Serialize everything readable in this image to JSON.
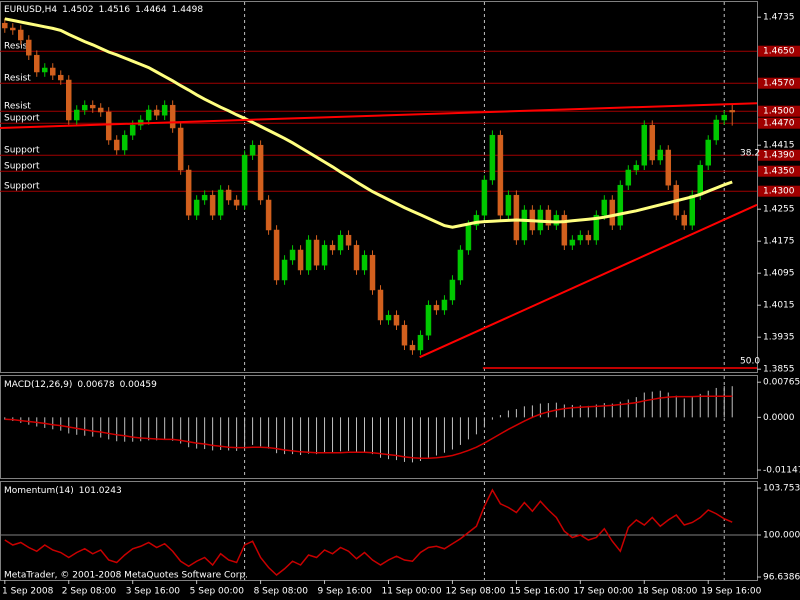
{
  "chart_data": [
    {
      "type": "candlestick",
      "title": "EURUSD,H4",
      "xlim": [
        -0.6,
        94.1
      ],
      "xticks": [
        {
          "value": 0,
          "label": "1 Sep 2008"
        },
        {
          "value": 8,
          "label": "2 Sep 08:00"
        },
        {
          "value": 16,
          "label": "3 Sep 16:00"
        },
        {
          "value": 24,
          "label": "5 Sep 00:00"
        },
        {
          "value": 32,
          "label": "8 Sep 08:00"
        },
        {
          "value": 40,
          "label": "9 Sep 16:00"
        },
        {
          "value": 48,
          "label": "11 Sep 00:00"
        },
        {
          "value": 56,
          "label": "12 Sep 08:00"
        },
        {
          "value": 64,
          "label": "15 Sep 16:00"
        },
        {
          "value": 72,
          "label": "17 Sep 00:00"
        },
        {
          "value": 80,
          "label": "18 Sep 08:00"
        },
        {
          "value": 88,
          "label": "19 Sep 16:00"
        }
      ],
      "ylim": [
        1.3848,
        1.4773
      ],
      "yticks": [
        1.4735,
        1.4415,
        1.4255,
        1.4175,
        1.4095,
        1.4015,
        1.3935,
        1.3855
      ],
      "up_color": "#00c800",
      "down_color": "#d2601e",
      "open": [
        1.472,
        1.4708,
        1.4703,
        1.4678,
        1.464,
        1.4598,
        1.4608,
        1.459,
        1.4578,
        1.4478,
        1.4503,
        1.4515,
        1.4508,
        1.4498,
        1.4428,
        1.4403,
        1.444,
        1.4465,
        1.4478,
        1.4503,
        1.449,
        1.4515,
        1.4458,
        1.4353,
        1.424,
        1.4278,
        1.429,
        1.424,
        1.4303,
        1.4278,
        1.4265,
        1.439,
        1.4415,
        1.4278,
        1.4203,
        1.4078,
        1.4128,
        1.4153,
        1.4103,
        1.4178,
        1.4115,
        1.4165,
        1.4153,
        1.419,
        1.4165,
        1.4103,
        1.414,
        1.4053,
        1.3978,
        1.399,
        1.3965,
        1.3915,
        1.3903,
        1.394,
        1.4015,
        1.4003,
        1.4028,
        1.4078,
        1.4153,
        1.4215,
        1.424,
        1.4328,
        1.444,
        1.424,
        1.429,
        1.4178,
        1.4253,
        1.4203,
        1.4253,
        1.4215,
        1.424,
        1.4165,
        1.4178,
        1.419,
        1.4178,
        1.424,
        1.4278,
        1.4215,
        1.4315,
        1.4353,
        1.4365,
        1.4465,
        1.4378,
        1.4403,
        1.4315,
        1.424,
        1.4215,
        1.429,
        1.4365,
        1.4428,
        1.4478,
        1.4502
      ],
      "high": [
        1.4732,
        1.472,
        1.4715,
        1.469,
        1.4652,
        1.462,
        1.462,
        1.4602,
        1.459,
        1.4515,
        1.4527,
        1.4527,
        1.452,
        1.451,
        1.444,
        1.4452,
        1.4477,
        1.449,
        1.4515,
        1.4515,
        1.4527,
        1.4527,
        1.447,
        1.4365,
        1.429,
        1.4302,
        1.4302,
        1.4315,
        1.4315,
        1.429,
        1.4402,
        1.4427,
        1.4427,
        1.429,
        1.4215,
        1.414,
        1.4165,
        1.4165,
        1.419,
        1.419,
        1.4177,
        1.4177,
        1.4202,
        1.4202,
        1.4177,
        1.4152,
        1.4152,
        1.4065,
        1.4002,
        1.4002,
        1.3977,
        1.3927,
        1.3952,
        1.4027,
        1.4027,
        1.404,
        1.409,
        1.4165,
        1.4227,
        1.4252,
        1.434,
        1.4452,
        1.4452,
        1.4302,
        1.4302,
        1.4265,
        1.4265,
        1.4265,
        1.4265,
        1.4252,
        1.4252,
        1.419,
        1.4202,
        1.4202,
        1.4252,
        1.429,
        1.429,
        1.4327,
        1.4365,
        1.4377,
        1.4477,
        1.4477,
        1.4415,
        1.4415,
        1.4327,
        1.4252,
        1.4302,
        1.4377,
        1.444,
        1.449,
        1.4502,
        1.4516
      ],
      "low": [
        1.4696,
        1.4691,
        1.4666,
        1.4628,
        1.4586,
        1.4586,
        1.4578,
        1.4566,
        1.4466,
        1.4466,
        1.4491,
        1.4496,
        1.4486,
        1.4416,
        1.4391,
        1.4391,
        1.4428,
        1.4453,
        1.4466,
        1.4478,
        1.4478,
        1.4446,
        1.4341,
        1.4228,
        1.4228,
        1.4266,
        1.4228,
        1.4228,
        1.4266,
        1.4253,
        1.4253,
        1.4378,
        1.4266,
        1.4191,
        1.4066,
        1.4066,
        1.4116,
        1.4091,
        1.4091,
        1.4103,
        1.4103,
        1.4141,
        1.4141,
        1.4153,
        1.4091,
        1.4091,
        1.4041,
        1.3966,
        1.3966,
        1.3953,
        1.3903,
        1.3891,
        1.3891,
        1.3928,
        1.3991,
        1.3991,
        1.4016,
        1.4066,
        1.4141,
        1.4203,
        1.4228,
        1.4316,
        1.4228,
        1.4228,
        1.4166,
        1.4166,
        1.4191,
        1.4191,
        1.4203,
        1.4203,
        1.4153,
        1.4153,
        1.4166,
        1.4166,
        1.4166,
        1.4228,
        1.4203,
        1.4203,
        1.4303,
        1.4341,
        1.4353,
        1.4366,
        1.4366,
        1.4303,
        1.4228,
        1.4203,
        1.4203,
        1.4278,
        1.4353,
        1.4416,
        1.4466,
        1.4464
      ],
      "close": [
        1.4708,
        1.4703,
        1.4678,
        1.464,
        1.4598,
        1.4608,
        1.459,
        1.4578,
        1.4478,
        1.4503,
        1.4515,
        1.4508,
        1.4498,
        1.4428,
        1.4403,
        1.444,
        1.4465,
        1.4478,
        1.4503,
        1.449,
        1.4515,
        1.4458,
        1.4353,
        1.424,
        1.4278,
        1.429,
        1.424,
        1.4303,
        1.4278,
        1.4265,
        1.439,
        1.4415,
        1.4278,
        1.4203,
        1.4078,
        1.4128,
        1.4153,
        1.4103,
        1.4178,
        1.4115,
        1.4165,
        1.4153,
        1.419,
        1.4165,
        1.4103,
        1.414,
        1.4053,
        1.3978,
        1.399,
        1.3965,
        1.3915,
        1.3903,
        1.394,
        1.4015,
        1.4003,
        1.4028,
        1.4078,
        1.4153,
        1.4215,
        1.424,
        1.4328,
        1.444,
        1.424,
        1.429,
        1.4178,
        1.4253,
        1.4203,
        1.4253,
        1.4215,
        1.424,
        1.4165,
        1.4178,
        1.419,
        1.4178,
        1.424,
        1.4278,
        1.4215,
        1.4315,
        1.4353,
        1.4365,
        1.4465,
        1.4378,
        1.4403,
        1.4315,
        1.424,
        1.4215,
        1.429,
        1.4365,
        1.4428,
        1.4478,
        1.449,
        1.4498
      ],
      "ma": {
        "color": "#ffff80",
        "values": [
          1.4731,
          1.4727,
          1.4723,
          1.4719,
          1.4715,
          1.4711,
          1.4707,
          1.4702,
          1.4692,
          1.4683,
          1.4674,
          1.4666,
          1.4657,
          1.4648,
          1.4641,
          1.4633,
          1.4625,
          1.4617,
          1.4609,
          1.4598,
          1.4587,
          1.4576,
          1.4564,
          1.4553,
          1.4541,
          1.453,
          1.452,
          1.451,
          1.4501,
          1.4491,
          1.4482,
          1.4472,
          1.4462,
          1.4452,
          1.4442,
          1.4432,
          1.4421,
          1.4409,
          1.4397,
          1.4385,
          1.4373,
          1.4361,
          1.4348,
          1.4336,
          1.4323,
          1.4311,
          1.4299,
          1.4289,
          1.4279,
          1.4269,
          1.4259,
          1.425,
          1.4241,
          1.4232,
          1.4223,
          1.4214,
          1.421,
          1.4214,
          1.4218,
          1.4222,
          1.4224,
          1.4225,
          1.4226,
          1.4227,
          1.4228,
          1.4227,
          1.4226,
          1.4225,
          1.4224,
          1.4223,
          1.4224,
          1.4226,
          1.4228,
          1.423,
          1.4232,
          1.4235,
          1.4239,
          1.4243,
          1.4247,
          1.4251,
          1.4256,
          1.4261,
          1.4266,
          1.4271,
          1.4276,
          1.4281,
          1.4286,
          1.4292,
          1.43,
          1.4308,
          1.4316,
          1.4323
        ]
      },
      "levels": [
        {
          "value": 1.465,
          "label": "1.4650",
          "text": "Resist"
        },
        {
          "value": 1.457,
          "label": "1.4570",
          "text": "Resist"
        },
        {
          "value": 1.45,
          "label": "1.4500",
          "text": "Resist"
        },
        {
          "value": 1.447,
          "label": "1.4470",
          "text": "Support"
        },
        {
          "value": 1.439,
          "label": "1.4390",
          "text": "Support"
        },
        {
          "value": 1.435,
          "label": "1.4350",
          "text": "Support"
        },
        {
          "value": 1.43,
          "label": "1.4300",
          "text": "Support"
        }
      ],
      "level_color": "#a00000",
      "trendlines": [
        {
          "x": [
            -0.6,
            94.1
          ],
          "y": [
            1.4458,
            1.452
          ],
          "color": "#ff0000"
        },
        {
          "x": [
            51.9,
            94.1
          ],
          "y": [
            1.3885,
            1.4266
          ],
          "color": "#ff0000"
        }
      ],
      "fib_levels": [
        {
          "label": "38.2",
          "price": 1.4378
        },
        {
          "label": "50.0",
          "price": 1.3858,
          "x": [
            59.8,
            94.1
          ]
        }
      ],
      "separators": [
        30,
        60,
        90
      ]
    },
    {
      "type": "macd",
      "title": "MACD(12,26,9)",
      "ylim": [
        -0.0132,
        0.009
      ],
      "yticks": [
        0.00765,
        {
          "value": 0,
          "label": "0.0000"
        },
        -0.01147
      ],
      "histogram": {
        "color": "#c0c0c0",
        "values": [
          -0.0005,
          -0.0008,
          -0.0012,
          -0.0016,
          -0.002,
          -0.0023,
          -0.0026,
          -0.0029,
          -0.0035,
          -0.0038,
          -0.004,
          -0.0042,
          -0.0044,
          -0.0048,
          -0.0052,
          -0.0053,
          -0.0053,
          -0.0052,
          -0.005,
          -0.005,
          -0.0049,
          -0.0051,
          -0.0057,
          -0.0065,
          -0.0068,
          -0.0069,
          -0.0072,
          -0.0071,
          -0.0072,
          -0.0073,
          -0.0066,
          -0.006,
          -0.0063,
          -0.0068,
          -0.0078,
          -0.008,
          -0.008,
          -0.0082,
          -0.0079,
          -0.008,
          -0.0078,
          -0.0077,
          -0.0074,
          -0.0073,
          -0.0076,
          -0.0075,
          -0.008,
          -0.0088,
          -0.0091,
          -0.0093,
          -0.0097,
          -0.0098,
          -0.0095,
          -0.0088,
          -0.0083,
          -0.0077,
          -0.007,
          -0.006,
          -0.0048,
          -0.0037,
          -0.0022,
          -0.0005,
          0.0005,
          0.0015,
          0.0018,
          0.0024,
          0.0026,
          0.003,
          0.0031,
          0.0032,
          0.0028,
          0.0027,
          0.0026,
          0.0025,
          0.0028,
          0.0031,
          0.003,
          0.0034,
          0.0039,
          0.0044,
          0.0054,
          0.0056,
          0.0058,
          0.0054,
          0.0047,
          0.0041,
          0.0044,
          0.0051,
          0.0058,
          0.0064,
          0.0068,
          0.00678
        ]
      },
      "signal": {
        "color": "#d00000",
        "values": [
          -0.0004,
          -0.0005,
          -0.0007,
          -0.0009,
          -0.0011,
          -0.0013,
          -0.0016,
          -0.0018,
          -0.0021,
          -0.0024,
          -0.0027,
          -0.003,
          -0.0032,
          -0.0035,
          -0.0038,
          -0.004,
          -0.0043,
          -0.0045,
          -0.0046,
          -0.0047,
          -0.0048,
          -0.0048,
          -0.005,
          -0.0053,
          -0.0056,
          -0.0058,
          -0.0061,
          -0.0063,
          -0.0065,
          -0.0066,
          -0.0066,
          -0.0065,
          -0.0065,
          -0.0066,
          -0.0068,
          -0.0071,
          -0.0073,
          -0.0075,
          -0.0076,
          -0.0077,
          -0.0077,
          -0.0077,
          -0.0077,
          -0.0076,
          -0.0076,
          -0.0076,
          -0.0077,
          -0.0079,
          -0.0081,
          -0.0083,
          -0.0086,
          -0.0088,
          -0.0089,
          -0.0089,
          -0.0088,
          -0.0086,
          -0.0083,
          -0.0078,
          -0.0072,
          -0.0065,
          -0.0056,
          -0.0046,
          -0.0036,
          -0.0026,
          -0.0017,
          -0.0008,
          0.0,
          0.0007,
          0.0012,
          0.0016,
          0.0019,
          0.0021,
          0.0022,
          0.0023,
          0.0024,
          0.0025,
          0.0026,
          0.0028,
          0.003,
          0.0032,
          0.0036,
          0.0039,
          0.0042,
          0.0044,
          0.0045,
          0.0045,
          0.0045,
          0.0046,
          0.0046,
          0.0046,
          0.0046,
          0.00459
        ]
      }
    },
    {
      "type": "line",
      "title": "Momentum(14)",
      "ylim": [
        96.4,
        104.24
      ],
      "yticks": [
        103.7537,
        {
          "value": 100,
          "label": "100.0000"
        },
        96.6386
      ],
      "hline": 100,
      "color": "#c80000",
      "values": [
        99.6,
        99.2,
        99.4,
        99.0,
        98.7,
        99.2,
        98.8,
        98.6,
        98.2,
        98.6,
        98.9,
        98.5,
        98.8,
        98.0,
        97.8,
        98.4,
        98.9,
        99.1,
        99.4,
        99.0,
        99.3,
        98.7,
        97.9,
        97.5,
        97.9,
        98.2,
        97.6,
        98.5,
        98.0,
        97.8,
        99.2,
        99.5,
        98.2,
        97.4,
        96.8,
        97.3,
        97.9,
        97.6,
        98.4,
        98.2,
        98.8,
        98.5,
        99.0,
        98.7,
        98.1,
        98.6,
        98.0,
        97.6,
        98.0,
        98.3,
        98.0,
        97.9,
        98.6,
        99.0,
        99.1,
        98.9,
        99.3,
        99.7,
        100.2,
        100.7,
        102.3,
        103.6,
        102.5,
        102.2,
        101.8,
        102.6,
        101.9,
        102.7,
        102.0,
        101.4,
        100.3,
        99.8,
        100.0,
        99.6,
        99.8,
        100.5,
        99.5,
        98.7,
        100.6,
        101.2,
        100.8,
        101.4,
        100.7,
        101.2,
        101.6,
        100.8,
        101.0,
        101.4,
        102.0,
        101.7,
        101.3,
        101.0243
      ],
      "annotation": "MetaTrader, © 2001-2008 MetaQuotes Software Corp."
    }
  ]
}
